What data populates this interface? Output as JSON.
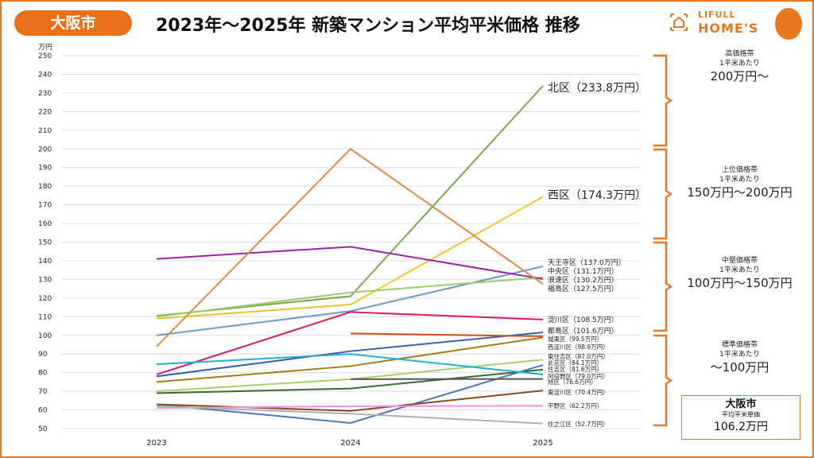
{
  "header": {
    "city_badge": "大阪市",
    "title": "2023年～2025年 新築マンション平均平米価格 推移",
    "logo_line1": "LIFULL",
    "logo_line2": "HOME'S"
  },
  "bands": [
    {
      "name": "高価格帯",
      "unit": "1平米あたり",
      "range": "200万円～"
    },
    {
      "name": "上位価格帯",
      "unit": "1平米あたり",
      "range": "150万円～200万円"
    },
    {
      "name": "中堅価格帯",
      "unit": "1平米あたり",
      "range": "100万円～150万円"
    },
    {
      "name": "標準価格帯",
      "unit": "1平米あたり",
      "range": "～100万円"
    }
  ],
  "city_average": {
    "city": "大阪市",
    "label": "平均平米単価",
    "value": "106.2万円"
  },
  "accent_color": "#e8781e",
  "chart_data": {
    "type": "line",
    "ylabel": "万円",
    "ylim": [
      50,
      250
    ],
    "yticks": [
      50,
      60,
      70,
      80,
      90,
      100,
      110,
      120,
      130,
      140,
      150,
      160,
      170,
      180,
      190,
      200,
      210,
      220,
      230,
      240,
      250
    ],
    "categories": [
      "2023",
      "2024",
      "2025"
    ],
    "grid": true,
    "series": [
      {
        "name": "北区",
        "label": "北区（233.8万円）",
        "color": "#7aa84a",
        "values": [
          110.5,
          121,
          233.8
        ]
      },
      {
        "name": "西区",
        "label": "西区（174.3万円）",
        "color": "#f0c22a",
        "values": [
          109,
          116.5,
          174.3
        ]
      },
      {
        "name": "天王寺区",
        "label": "天王寺区（137.0万円）",
        "color": "#6a9bc8",
        "values": [
          100,
          113,
          137.0
        ]
      },
      {
        "name": "中央区",
        "label": "中央区（131.1万円）",
        "color": "#9ccc6a",
        "values": [
          110,
          123,
          131.1
        ]
      },
      {
        "name": "浪速区",
        "label": "浪速区（130.2万円）",
        "color": "#a020a8",
        "values": [
          141,
          147.5,
          130.2
        ]
      },
      {
        "name": "福島区",
        "label": "福島区（127.5万円）",
        "color": "#e08a40",
        "values": [
          94,
          200,
          127.5
        ]
      },
      {
        "name": "淀川区",
        "label": "淀川区（108.5万円）",
        "color": "#d81a6a",
        "values": [
          79,
          112.5,
          108.5
        ]
      },
      {
        "name": "都島区",
        "label": "都島区（101.6万円）",
        "color": "#3a5fa8",
        "values": [
          78,
          91.5,
          101.6
        ]
      },
      {
        "name": "城東区",
        "label": "城東区（99.5万円）",
        "color": "#d84a1a",
        "values": [
          null,
          101,
          99.5
        ]
      },
      {
        "name": "西淀川区",
        "label": "西淀川区（98.9万円）",
        "color": "#a08010",
        "values": [
          75,
          83.5,
          98.9
        ]
      },
      {
        "name": "東住吉区",
        "label": "東住吉区（87.0万円）",
        "color": "#a6d06a",
        "values": [
          70,
          76.5,
          87.0
        ]
      },
      {
        "name": "此花区",
        "label": "此花区（84.1万円）",
        "color": "#4a78b8",
        "values": [
          63,
          53,
          84.1
        ]
      },
      {
        "name": "住吉区",
        "label": "住吉区（81.6万円）",
        "color": "#3a6a30",
        "values": [
          69,
          71.5,
          81.6
        ]
      },
      {
        "name": "阿倍野区",
        "label": "阿倍野区（79.0万円）",
        "color": "#20b0d0",
        "values": [
          84.5,
          90,
          79.0
        ]
      },
      {
        "name": "旭区",
        "label": "旭区（76.6万円）",
        "color": "#555555",
        "values": [
          null,
          76.5,
          76.6
        ]
      },
      {
        "name": "東淀川区",
        "label": "東淀川区（70.4万円）",
        "color": "#8a4a1a",
        "values": [
          63,
          59.5,
          70.4
        ]
      },
      {
        "name": "平野区",
        "label": "平野区（62.2万円）",
        "color": "#f090e0",
        "values": [
          61,
          62,
          62.2
        ]
      },
      {
        "name": "住之江区",
        "label": "住之江区（52.7万円）",
        "color": "#b0b0b0",
        "values": [
          62,
          58,
          52.7
        ]
      }
    ]
  }
}
